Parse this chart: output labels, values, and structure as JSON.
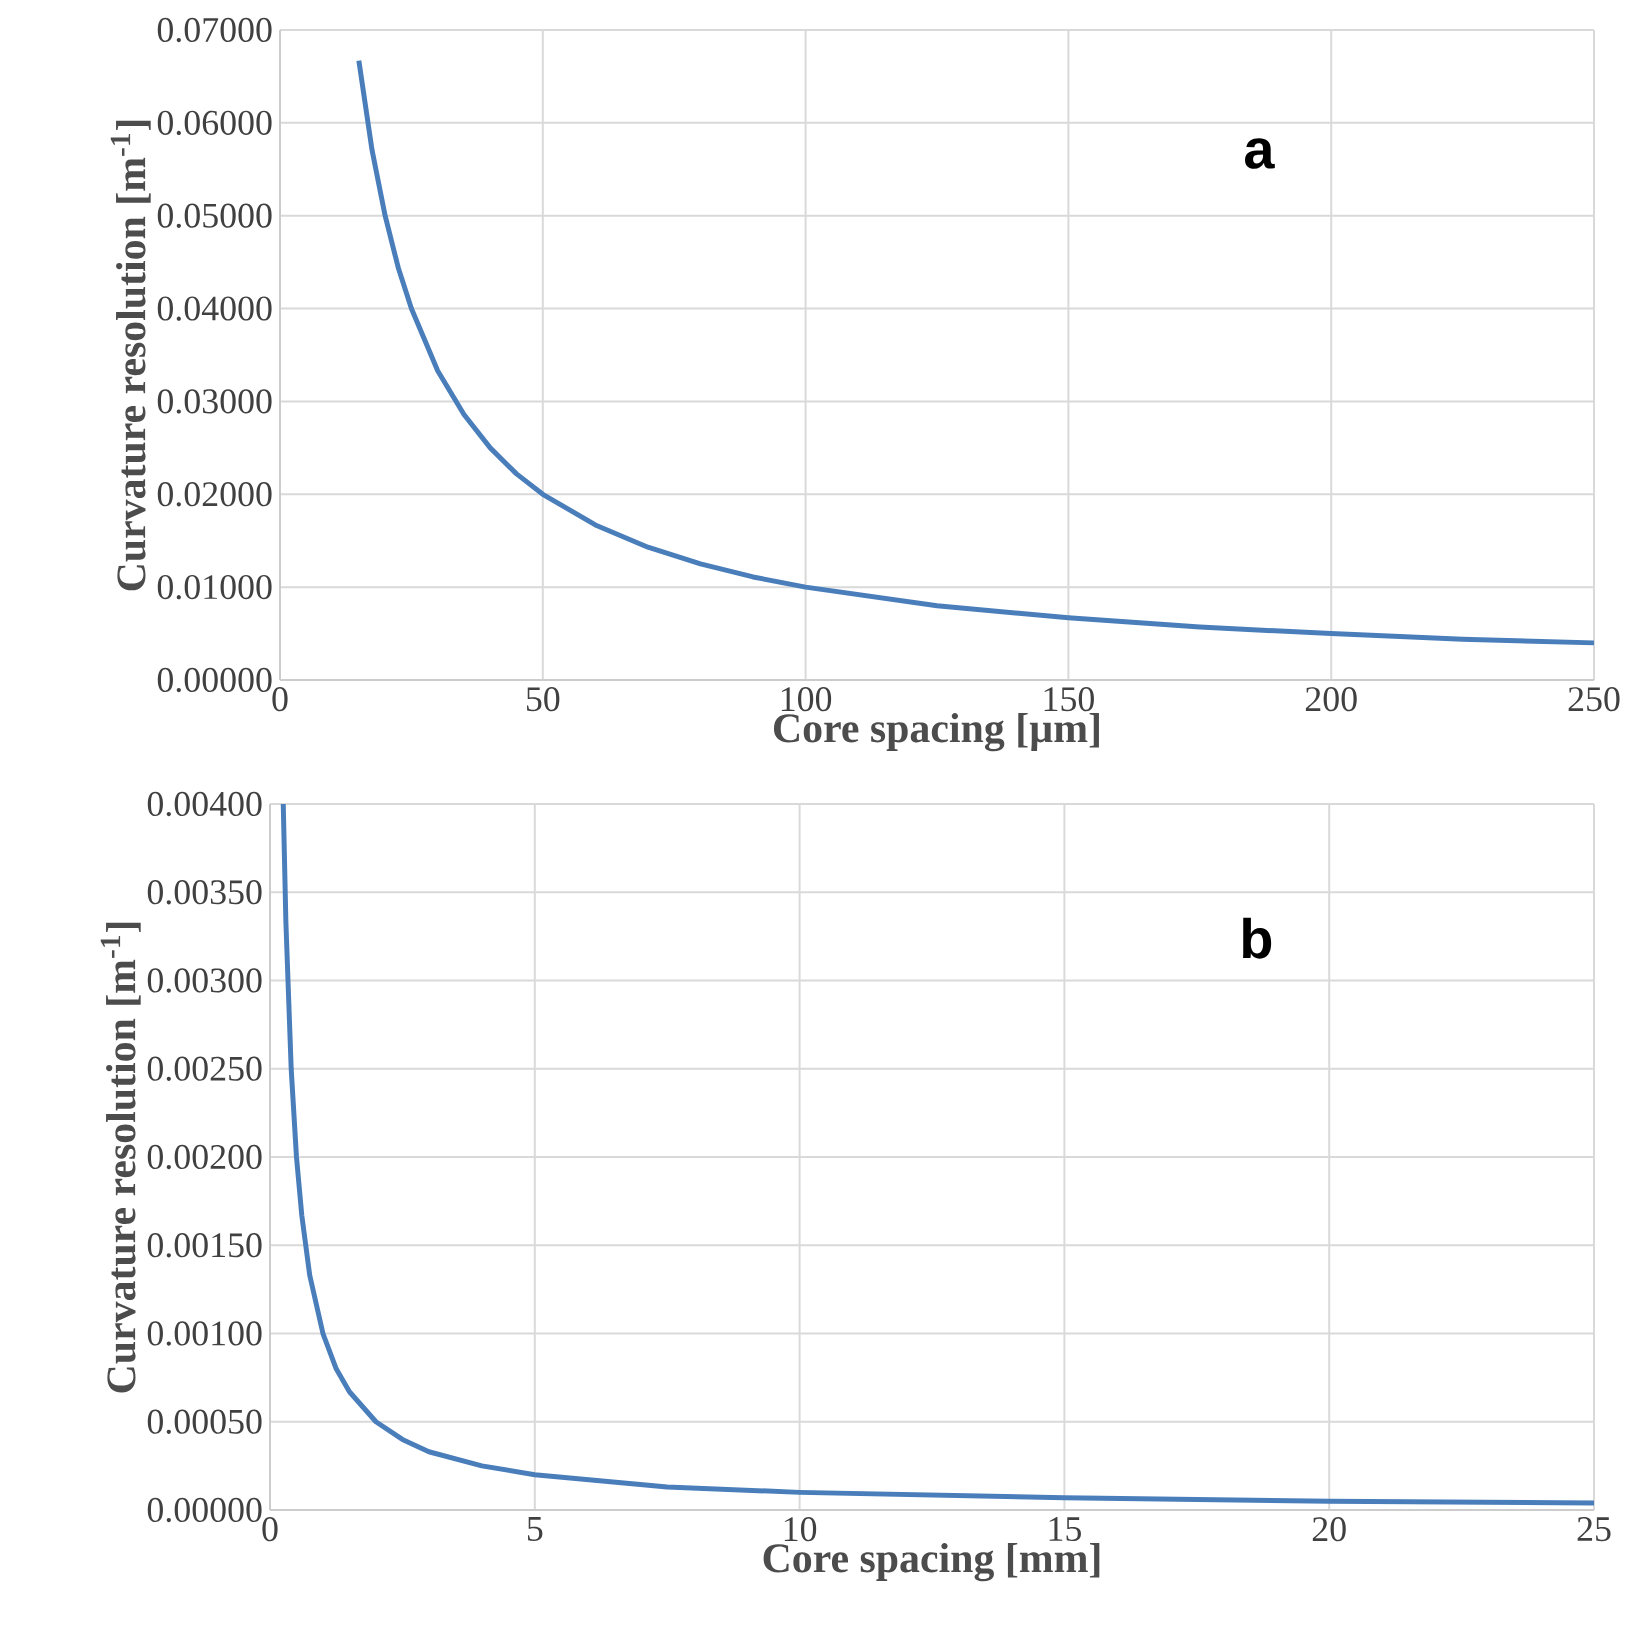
{
  "chart_data": [
    {
      "type": "line",
      "xlabel": "Core spacing [µm]",
      "ylabel": "Curvature resolution [m$^{-1}$]",
      "annotations": [
        "a"
      ],
      "grid": true,
      "marker": "none",
      "line_style": "solid",
      "xlim": [
        0,
        250
      ],
      "xticks": [
        0,
        50,
        100,
        150,
        200,
        250
      ],
      "ylim": [
        0,
        0.07
      ],
      "yticks": [
        {
          "value": 0,
          "label": "0.00000"
        },
        {
          "value": 0.01,
          "label": "0.01000"
        },
        {
          "value": 0.02,
          "label": "0.02000"
        },
        {
          "value": 0.03,
          "label": "0.03000"
        },
        {
          "value": 0.04,
          "label": "0.04000"
        },
        {
          "value": 0.05,
          "label": "0.05000"
        },
        {
          "value": 0.06,
          "label": "0.06000"
        },
        {
          "value": 0.07,
          "label": "0.07000"
        }
      ],
      "series": [
        {
          "color": "#4a7ebb",
          "x": [
            15,
            17.5,
            20,
            22.5,
            25,
            30,
            35,
            40,
            45,
            50,
            60,
            70,
            80,
            90,
            100,
            125,
            150,
            175,
            200,
            225,
            250
          ],
          "values": [
            0.0667,
            0.0571,
            0.05,
            0.0444,
            0.04,
            0.0333,
            0.0286,
            0.025,
            0.0222,
            0.02,
            0.0167,
            0.0143,
            0.0125,
            0.0111,
            0.01,
            0.008,
            0.0067,
            0.0057,
            0.005,
            0.0044,
            0.004
          ]
        }
      ]
    },
    {
      "type": "line",
      "xlabel": "Core spacing [mm]",
      "ylabel": "Curvature resolution [m$^{-1}$]",
      "annotations": [
        "b"
      ],
      "grid": true,
      "marker": "none",
      "line_style": "solid",
      "xlim": [
        0,
        25
      ],
      "xticks": [
        0,
        5,
        10,
        15,
        20,
        25
      ],
      "ylim": [
        0,
        0.004
      ],
      "yticks": [
        {
          "value": 0,
          "label": "0.00000"
        },
        {
          "value": 0.0005,
          "label": "0.00050"
        },
        {
          "value": 0.001,
          "label": "0.00100"
        },
        {
          "value": 0.0015,
          "label": "0.00150"
        },
        {
          "value": 0.002,
          "label": "0.00200"
        },
        {
          "value": 0.0025,
          "label": "0.00250"
        },
        {
          "value": 0.003,
          "label": "0.00300"
        },
        {
          "value": 0.0035,
          "label": "0.00350"
        },
        {
          "value": 0.004,
          "label": "0.00400"
        }
      ],
      "series": [
        {
          "color": "#4a7ebb",
          "x": [
            0.25,
            0.3,
            0.4,
            0.5,
            0.6,
            0.75,
            1,
            1.25,
            1.5,
            2,
            2.5,
            3,
            4,
            5,
            7.5,
            10,
            15,
            20,
            25
          ],
          "values": [
            0.004,
            0.00333,
            0.0025,
            0.002,
            0.00167,
            0.00133,
            0.001,
            0.0008,
            0.00067,
            0.0005,
            0.0004,
            0.00033,
            0.00025,
            0.0002,
            0.00013,
            0.0001,
            7e-05,
            5e-05,
            4e-05
          ]
        }
      ]
    }
  ]
}
